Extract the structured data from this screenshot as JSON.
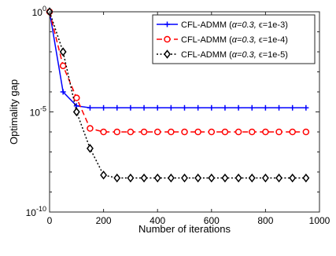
{
  "chart_data": {
    "type": "line",
    "title": "",
    "xlabel": "Number of iterations",
    "ylabel": "Optimality gap",
    "x_scale": "linear",
    "y_scale": "log",
    "xlim": [
      0,
      1000
    ],
    "ylim": [
      1e-10,
      1
    ],
    "x_ticks": [
      {
        "value": 0,
        "label": "0"
      },
      {
        "value": 200,
        "label": "200"
      },
      {
        "value": 400,
        "label": "400"
      },
      {
        "value": 600,
        "label": "600"
      },
      {
        "value": 800,
        "label": "800"
      },
      {
        "value": 1000,
        "label": "1000"
      }
    ],
    "y_ticks": [
      {
        "value": 1,
        "base": "10",
        "exp": "0"
      },
      {
        "value": 1e-05,
        "base": "10",
        "exp": "-5"
      },
      {
        "value": 1e-10,
        "base": "10",
        "exp": "-10"
      }
    ],
    "grid": false,
    "legend_position": "top-right",
    "series": [
      {
        "name_prefix": "CFL-ADMM (",
        "alpha_label": "α=0.3, ",
        "eps_label": "ϵ=1e-3)",
        "color": "#0000ff",
        "line_style": "solid",
        "marker": "plus",
        "x": [
          0,
          50,
          100,
          150,
          200,
          250,
          300,
          350,
          400,
          450,
          500,
          550,
          600,
          650,
          700,
          750,
          800,
          850,
          900,
          950
        ],
        "y": [
          1,
          0.0001,
          2e-05,
          1.6e-05,
          1.6e-05,
          1.6e-05,
          1.6e-05,
          1.6e-05,
          1.6e-05,
          1.6e-05,
          1.6e-05,
          1.6e-05,
          1.6e-05,
          1.6e-05,
          1.6e-05,
          1.6e-05,
          1.6e-05,
          1.6e-05,
          1.6e-05,
          1.6e-05
        ]
      },
      {
        "name_prefix": "CFL-ADMM (",
        "alpha_label": "α=0.3, ",
        "eps_label": "ϵ=1e-4)",
        "color": "#ff0000",
        "line_style": "dashed",
        "marker": "circle",
        "x": [
          0,
          50,
          100,
          150,
          200,
          250,
          300,
          350,
          400,
          450,
          500,
          550,
          600,
          650,
          700,
          750,
          800,
          850,
          900,
          950
        ],
        "y": [
          1,
          0.002,
          5e-05,
          1.5e-06,
          1e-06,
          1e-06,
          1e-06,
          1e-06,
          1e-06,
          1e-06,
          1e-06,
          1e-06,
          1e-06,
          1e-06,
          1e-06,
          1e-06,
          1e-06,
          1e-06,
          1e-06,
          1e-06
        ]
      },
      {
        "name_prefix": "CFL-ADMM (",
        "alpha_label": "α=0.3, ",
        "eps_label": "ϵ=1e-5)",
        "color": "#000000",
        "line_style": "dotted",
        "marker": "diamond",
        "x": [
          0,
          50,
          100,
          150,
          200,
          250,
          300,
          350,
          400,
          450,
          500,
          550,
          600,
          650,
          700,
          750,
          800,
          850,
          900,
          950
        ],
        "y": [
          1,
          0.01,
          1e-05,
          1.5e-07,
          7e-09,
          5e-09,
          5e-09,
          5e-09,
          5e-09,
          5e-09,
          5e-09,
          5e-09,
          5e-09,
          5e-09,
          5e-09,
          5e-09,
          5e-09,
          5e-09,
          5e-09,
          5e-09
        ]
      }
    ]
  }
}
